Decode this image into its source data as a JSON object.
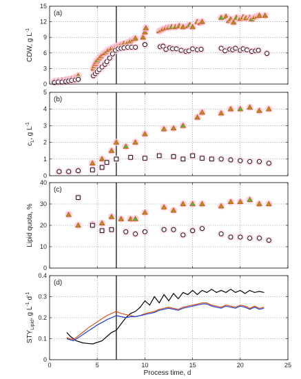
{
  "figure": {
    "xlabel": "Process time, d",
    "xlim": [
      0,
      25
    ],
    "xticks": [
      0,
      5,
      10,
      15,
      20,
      25
    ],
    "vline_x": 7,
    "colors": {
      "orange": "#d95319",
      "olive": "#a09a25",
      "green": "#33cc33",
      "pink": "#ffc8dc",
      "black": "#000000",
      "blue": "#1f3fd6"
    }
  },
  "chart_data": [
    {
      "panel": "(a)",
      "type": "scatter",
      "ylabel": "CDW, g L⁻¹",
      "ylabel_base": "CDW, g L",
      "ylabel_sup": "-1",
      "ylim": [
        0,
        15
      ],
      "yticks": [
        0,
        3,
        6,
        9,
        12,
        15
      ],
      "grid": true,
      "series": [
        {
          "marker": "triangle",
          "x": [
            0.5,
            0.9,
            1.3,
            1.7,
            2.0,
            2.3,
            2.7,
            3.0,
            4.6,
            4.7,
            4.8,
            4.9,
            5.0,
            5.2,
            5.4,
            5.6,
            5.8,
            6.0,
            6.2,
            6.5,
            6.8,
            7.0,
            7.2,
            7.5,
            7.8,
            8.2,
            8.5,
            8.8,
            9.0,
            9.8,
            10.0,
            10.1,
            11.5,
            11.7,
            11.9,
            12.2,
            12.5,
            12.8,
            13.2,
            13.6,
            14.0,
            14.5,
            14.7,
            15.0,
            15.5,
            15.8,
            16.0,
            18.0,
            18.5,
            18.8,
            19.0,
            19.3,
            19.6,
            20.0,
            20.3,
            20.6,
            21.0,
            21.2,
            21.5,
            21.8,
            22.0,
            22.6
          ],
          "y": [
            0.5,
            0.6,
            0.7,
            0.8,
            0.9,
            1.0,
            1.3,
            1.6,
            3.0,
            3.5,
            3.9,
            4.3,
            4.6,
            5.0,
            5.4,
            5.8,
            6.0,
            6.3,
            6.6,
            6.9,
            7.1,
            7.3,
            7.3,
            7.6,
            7.8,
            8.0,
            8.3,
            8.6,
            8.8,
            9.0,
            10.0,
            10.8,
            10.2,
            10.4,
            10.6,
            10.8,
            10.9,
            11.0,
            11.0,
            11.2,
            11.0,
            11.2,
            11.4,
            11.0,
            12.0,
            11.8,
            12.0,
            12.8,
            13.0,
            12.2,
            12.5,
            11.9,
            12.8,
            12.6,
            12.9,
            12.7,
            12.8,
            12.5,
            12.9,
            13.1,
            13.2,
            13.2
          ]
        },
        {
          "marker": "circle",
          "x": [
            0.5,
            0.9,
            1.3,
            1.7,
            2.0,
            2.3,
            2.7,
            3.0,
            4.6,
            4.8,
            5.0,
            5.2,
            5.5,
            5.8,
            6.0,
            6.3,
            6.6,
            6.9,
            7.2,
            7.5,
            7.8,
            8.2,
            8.6,
            9.0,
            10.0,
            11.6,
            11.9,
            12.2,
            12.6,
            12.9,
            13.3,
            13.8,
            14.3,
            14.6,
            15.0,
            15.5,
            15.9,
            18.0,
            18.4,
            18.9,
            19.2,
            19.5,
            20.0,
            20.3,
            20.7,
            21.2,
            21.6,
            21.9,
            22.8
          ],
          "y": [
            0.3,
            0.4,
            0.4,
            0.5,
            0.6,
            0.7,
            0.8,
            0.9,
            1.6,
            2.0,
            2.4,
            2.8,
            3.3,
            3.8,
            4.3,
            5.0,
            5.8,
            6.5,
            6.8,
            6.9,
            7.0,
            7.1,
            7.1,
            7.1,
            7.6,
            7.2,
            7.3,
            6.7,
            7.0,
            6.8,
            6.8,
            6.5,
            6.3,
            6.4,
            6.8,
            6.6,
            6.7,
            6.9,
            6.4,
            6.7,
            6.6,
            6.9,
            6.5,
            6.8,
            6.6,
            6.3,
            6.4,
            6.5,
            5.9
          ]
        }
      ]
    },
    {
      "panel": "(b)",
      "type": "scatter",
      "ylabel": "cₗ, g L⁻¹",
      "ylabel_base": "c",
      "ylabel_sub": "L",
      "ylabel_rest": ", g L",
      "ylabel_sup": "-1",
      "ylim": [
        0,
        5
      ],
      "yticks": [
        0,
        1,
        2,
        3,
        4,
        5
      ],
      "grid": true,
      "series": [
        {
          "marker": "triangle",
          "x": [
            1.0,
            2.0,
            3.0,
            4.5,
            5.5,
            6.5,
            7.0,
            8.0,
            9.0,
            10.0,
            12.0,
            13.0,
            14.0,
            15.5,
            16.0,
            18.0,
            19.0,
            20.0,
            21.0,
            22.0,
            23.0
          ],
          "y": [
            0.25,
            0.25,
            0.3,
            0.75,
            1.0,
            1.5,
            2.0,
            1.75,
            2.0,
            2.5,
            2.8,
            2.85,
            3.0,
            3.5,
            3.8,
            3.75,
            4.0,
            4.0,
            4.1,
            3.9,
            4.0
          ]
        },
        {
          "marker": "square",
          "x": [
            4.5,
            5.5,
            6.0,
            7.0,
            8.5,
            10.0,
            11.5,
            13.0,
            14.0,
            15.0,
            16.0,
            17.0
          ],
          "y": [
            0.35,
            0.5,
            0.8,
            1.0,
            1.1,
            1.05,
            1.2,
            1.15,
            1.0,
            1.2,
            1.05,
            1.0
          ]
        },
        {
          "marker": "circle",
          "x": [
            1.0,
            2.0,
            3.0,
            18.0,
            19.0,
            20.0,
            21.0,
            22.0,
            23.0
          ],
          "y": [
            0.25,
            0.25,
            0.3,
            1.0,
            0.95,
            0.9,
            0.85,
            0.85,
            0.75
          ]
        }
      ]
    },
    {
      "panel": "(c)",
      "type": "scatter",
      "ylabel": "Lipid quota, %",
      "ylim": [
        0,
        40
      ],
      "yticks": [
        0,
        10,
        20,
        30,
        40
      ],
      "grid": true,
      "series": [
        {
          "marker": "triangle",
          "x": [
            2.0,
            3.0,
            4.5,
            5.5,
            6.5,
            7.5,
            8.5,
            9.0,
            10.0,
            12.0,
            13.0,
            14.0,
            15.0,
            16.0,
            18.0,
            19.0,
            20.0,
            21.0,
            22.0,
            23.0
          ],
          "y": [
            25,
            20,
            20.5,
            21,
            24,
            23,
            23,
            23,
            26,
            28.5,
            27,
            30,
            30,
            30,
            29,
            31,
            31,
            32,
            30,
            30
          ]
        },
        {
          "marker": "square",
          "x": [
            3.0,
            4.5,
            5.5,
            6.5
          ],
          "y": [
            33,
            20,
            17.5,
            18
          ]
        },
        {
          "marker": "circle",
          "x": [
            8.0,
            9.0,
            10.0,
            12.0,
            13.0,
            14.0,
            15.0,
            16.0,
            18.0,
            19.0,
            20.0,
            21.0,
            22.0,
            23.0
          ],
          "y": [
            17,
            16,
            17,
            18,
            18,
            15.5,
            17.5,
            18.5,
            16,
            14.5,
            14.5,
            14,
            14,
            13
          ]
        }
      ]
    },
    {
      "panel": "(d)",
      "type": "line",
      "ylabel": "STY_Lipid, g L⁻¹ d⁻¹",
      "ylabel_base": "STY",
      "ylabel_sub": "Lipid",
      "ylabel_rest": ", g L",
      "ylabel_sup": "-1",
      "ylabel_rest2": " d",
      "ylabel_sup2": "-1",
      "ylim": [
        0,
        0.4
      ],
      "yticks": [
        0,
        0.1,
        0.2,
        0.3,
        0.4
      ],
      "grid": true,
      "series": [
        {
          "color": "black",
          "x": [
            1.8,
            2.2,
            2.8,
            3.5,
            4.5,
            5.5,
            6.5,
            7.0,
            7.5,
            8.0,
            8.5,
            9.0,
            9.5,
            10.0,
            10.5,
            11.0,
            11.5,
            12.0,
            12.5,
            13.0,
            13.5,
            14.0,
            14.5,
            15.0,
            15.5,
            16.0,
            16.5,
            17.0,
            17.5,
            18.0,
            18.5,
            19.0,
            19.5,
            20.0,
            20.5,
            21.0,
            21.5,
            22.0,
            22.5
          ],
          "y": [
            0.13,
            0.11,
            0.09,
            0.08,
            0.075,
            0.09,
            0.13,
            0.14,
            0.17,
            0.2,
            0.22,
            0.23,
            0.25,
            0.28,
            0.26,
            0.3,
            0.27,
            0.31,
            0.28,
            0.315,
            0.29,
            0.32,
            0.31,
            0.33,
            0.31,
            0.33,
            0.32,
            0.335,
            0.32,
            0.33,
            0.32,
            0.335,
            0.32,
            0.33,
            0.315,
            0.33,
            0.32,
            0.325,
            0.32
          ]
        },
        {
          "color": "orange",
          "x": [
            1.8,
            2.5,
            3.2,
            4.0,
            5.0,
            6.0,
            7.0,
            7.5,
            8.0,
            8.5,
            9.0,
            9.5,
            10.0,
            10.5,
            11.0,
            11.5,
            12.0,
            12.5,
            13.0,
            13.5,
            14.0,
            14.5,
            15.0,
            15.5,
            16.0,
            16.5,
            17.0,
            17.5,
            18.0,
            18.5,
            19.0,
            19.5,
            20.0,
            20.5,
            21.0,
            21.5,
            22.0,
            22.5
          ],
          "y": [
            0.105,
            0.095,
            0.12,
            0.15,
            0.18,
            0.21,
            0.23,
            0.22,
            0.215,
            0.21,
            0.205,
            0.21,
            0.22,
            0.225,
            0.23,
            0.24,
            0.245,
            0.25,
            0.245,
            0.24,
            0.25,
            0.255,
            0.26,
            0.265,
            0.27,
            0.27,
            0.26,
            0.255,
            0.25,
            0.26,
            0.255,
            0.25,
            0.26,
            0.255,
            0.245,
            0.255,
            0.245,
            0.25
          ]
        },
        {
          "color": "blue",
          "x": [
            1.8,
            2.5,
            3.2,
            4.0,
            5.0,
            6.0,
            7.0,
            7.5,
            8.0,
            8.5,
            9.0,
            9.5,
            10.0,
            10.5,
            11.0,
            11.5,
            12.0,
            12.5,
            13.0,
            13.5,
            14.0,
            14.5,
            15.0,
            15.5,
            16.0,
            16.5,
            17.0,
            17.5,
            18.0,
            18.5,
            19.0,
            19.5,
            20.0,
            20.5,
            21.0,
            21.5,
            22.0,
            22.5
          ],
          "y": [
            0.1,
            0.09,
            0.11,
            0.135,
            0.165,
            0.19,
            0.21,
            0.205,
            0.2,
            0.205,
            0.205,
            0.21,
            0.215,
            0.22,
            0.225,
            0.235,
            0.24,
            0.245,
            0.24,
            0.235,
            0.245,
            0.25,
            0.255,
            0.26,
            0.265,
            0.265,
            0.255,
            0.25,
            0.245,
            0.255,
            0.25,
            0.245,
            0.255,
            0.25,
            0.24,
            0.25,
            0.24,
            0.245
          ]
        }
      ]
    }
  ]
}
